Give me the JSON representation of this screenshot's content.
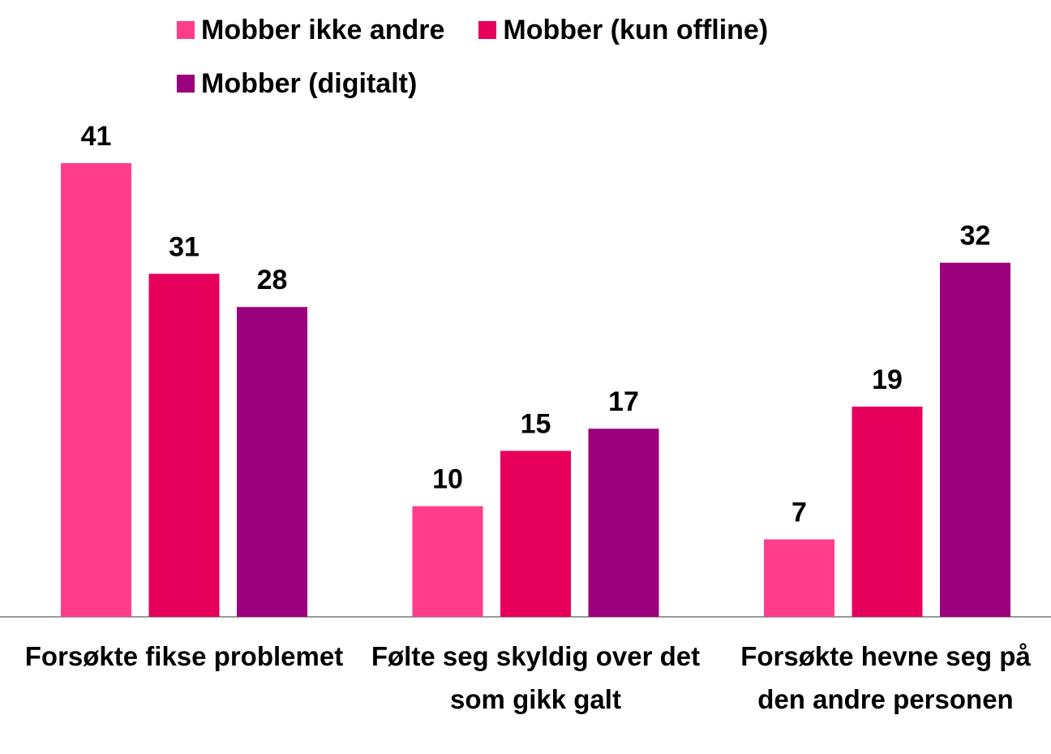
{
  "chart_data": {
    "type": "bar",
    "categories": [
      "Forsøkte fikse problemet",
      "Følte seg skyldig over det som gikk galt",
      "Forsøkte hevne seg på den andre personen"
    ],
    "series": [
      {
        "name": "Mobber ikke andre",
        "color": "#ff3d8b",
        "values": [
          41,
          10,
          7
        ]
      },
      {
        "name": "Mobber (kun offline)",
        "color": "#e6005c",
        "values": [
          31,
          15,
          19
        ]
      },
      {
        "name": "Mobber (digitalt)",
        "color": "#9b007d",
        "values": [
          28,
          17,
          32
        ]
      }
    ],
    "legend": "top"
  }
}
